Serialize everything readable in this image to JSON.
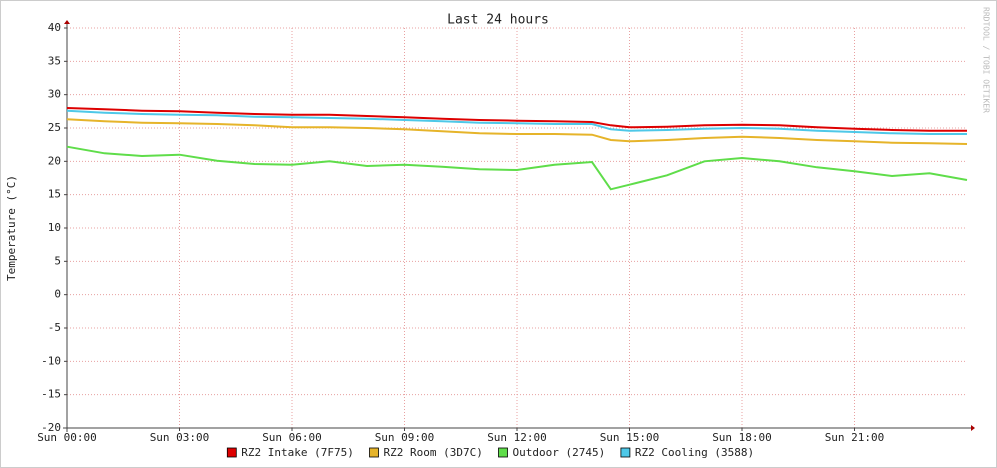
{
  "chart_data": {
    "type": "line",
    "title": "Last 24 hours",
    "y_label": "Temperature (°C)",
    "watermark": "RRDTOOL / TOBI OETIKER",
    "x": [
      0,
      1,
      2,
      3,
      4,
      5,
      6,
      7,
      8,
      9,
      10,
      11,
      12,
      13,
      14,
      14.5,
      15,
      16,
      17,
      18,
      19,
      20,
      21,
      22,
      23,
      24
    ],
    "xlim": [
      0,
      24
    ],
    "xticks": [
      {
        "value": 0,
        "label": "Sun 00:00"
      },
      {
        "value": 3,
        "label": "Sun 03:00"
      },
      {
        "value": 6,
        "label": "Sun 06:00"
      },
      {
        "value": 9,
        "label": "Sun 09:00"
      },
      {
        "value": 12,
        "label": "Sun 12:00"
      },
      {
        "value": 15,
        "label": "Sun 15:00"
      },
      {
        "value": 18,
        "label": "Sun 18:00"
      },
      {
        "value": 21,
        "label": "Sun 21:00"
      }
    ],
    "ylim": [
      -20,
      40
    ],
    "yticks": [
      40,
      35,
      30,
      25,
      20,
      15,
      10,
      5,
      0,
      -5,
      -10,
      -15,
      -20
    ],
    "grid": true,
    "legend": "bottom",
    "series": [
      {
        "name": "RZ2 Intake (7F75)",
        "color": "#dd0000",
        "values": [
          28.0,
          27.8,
          27.6,
          27.5,
          27.3,
          27.1,
          27.0,
          27.0,
          26.8,
          26.6,
          26.4,
          26.2,
          26.1,
          26.0,
          25.9,
          25.4,
          25.1,
          25.2,
          25.4,
          25.5,
          25.4,
          25.1,
          24.9,
          24.7,
          24.6,
          24.6
        ]
      },
      {
        "name": "RZ2 Room (3D7C)",
        "color": "#e6b42a",
        "values": [
          26.3,
          26.0,
          25.8,
          25.7,
          25.6,
          25.4,
          25.1,
          25.1,
          25.0,
          24.8,
          24.5,
          24.2,
          24.1,
          24.1,
          24.0,
          23.2,
          23.0,
          23.2,
          23.5,
          23.7,
          23.5,
          23.2,
          23.0,
          22.8,
          22.7,
          22.6
        ]
      },
      {
        "name": "Outdoor (2745)",
        "color": "#5fdd4a",
        "values": [
          22.2,
          21.2,
          20.8,
          21.0,
          20.1,
          19.6,
          19.5,
          20.0,
          19.3,
          19.5,
          19.2,
          18.8,
          18.7,
          19.5,
          19.9,
          15.8,
          16.5,
          17.9,
          20.0,
          20.5,
          20.0,
          19.1,
          18.5,
          17.8,
          18.2,
          17.2
        ]
      },
      {
        "name": "RZ2 Cooling (3588)",
        "color": "#4ec8e8",
        "values": [
          27.6,
          27.3,
          27.1,
          27.0,
          26.9,
          26.7,
          26.6,
          26.5,
          26.4,
          26.2,
          26.0,
          25.8,
          25.7,
          25.6,
          25.6,
          24.8,
          24.6,
          24.7,
          24.9,
          25.0,
          24.9,
          24.6,
          24.4,
          24.2,
          24.1,
          24.1
        ]
      }
    ]
  }
}
